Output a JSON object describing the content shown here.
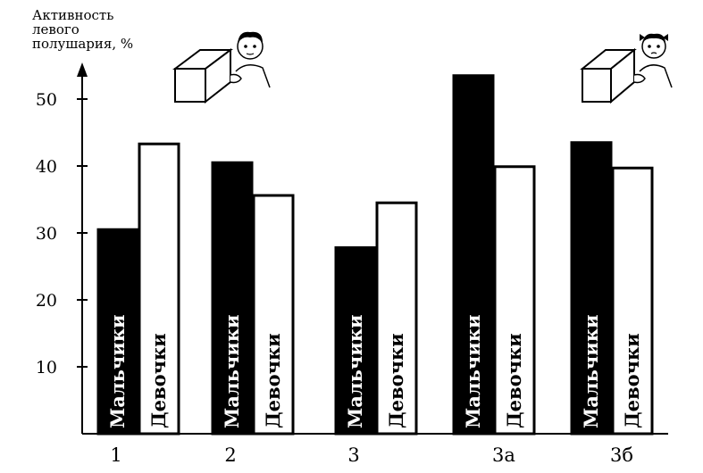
{
  "chart_data": {
    "type": "bar",
    "ylabel_lines": [
      "Активность",
      "левого",
      "полушария, %"
    ],
    "categories": [
      "1",
      "2",
      "3",
      "3а",
      "3б"
    ],
    "series": [
      {
        "name": "Мальчики",
        "color": "#000000",
        "values": [
          30.5,
          40.5,
          27.8,
          53.5,
          43.5
        ]
      },
      {
        "name": "Девочки",
        "color": "#ffffff",
        "values": [
          43.3,
          35.6,
          34.5,
          39.9,
          39.7
        ]
      }
    ],
    "yticks": [
      10,
      20,
      30,
      40,
      50
    ],
    "ylim": [
      0,
      55
    ],
    "grid": false,
    "legend": "none",
    "icons": [
      "boy-with-cube-icon",
      "girl-with-cube-icon"
    ]
  }
}
